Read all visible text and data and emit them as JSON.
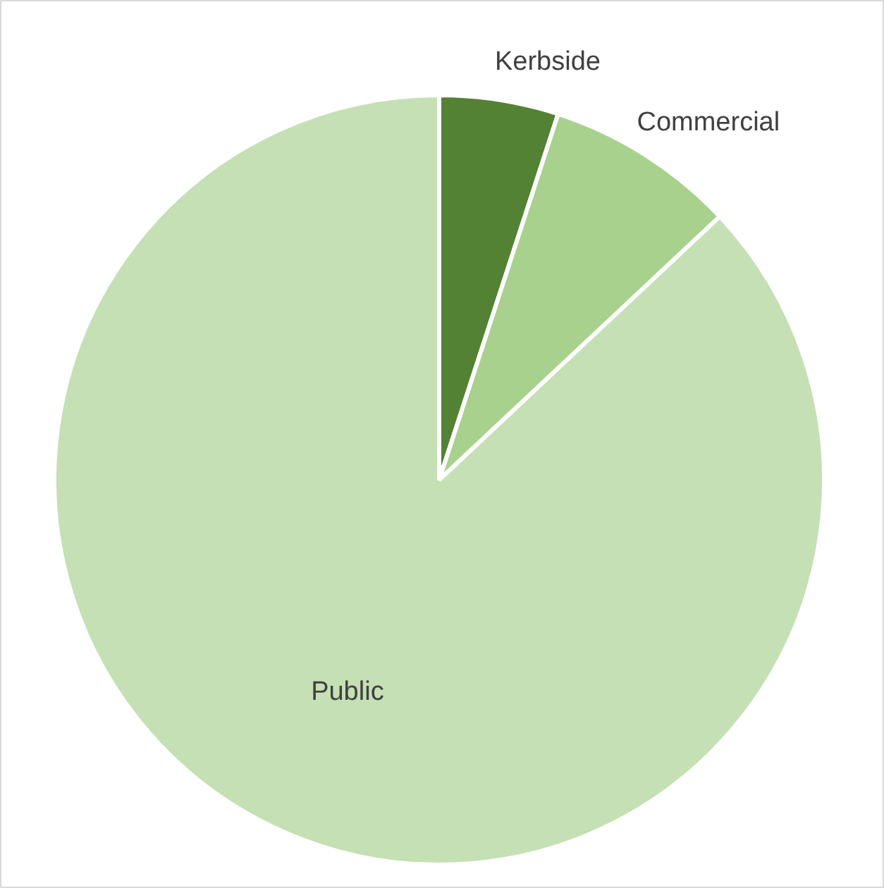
{
  "chart_data": {
    "type": "pie",
    "categories": [
      "Kerbside",
      "Commercial",
      "Public"
    ],
    "values": [
      5,
      8,
      87
    ],
    "colors": [
      "#548235",
      "#a9d18e",
      "#c5e0b4"
    ]
  }
}
